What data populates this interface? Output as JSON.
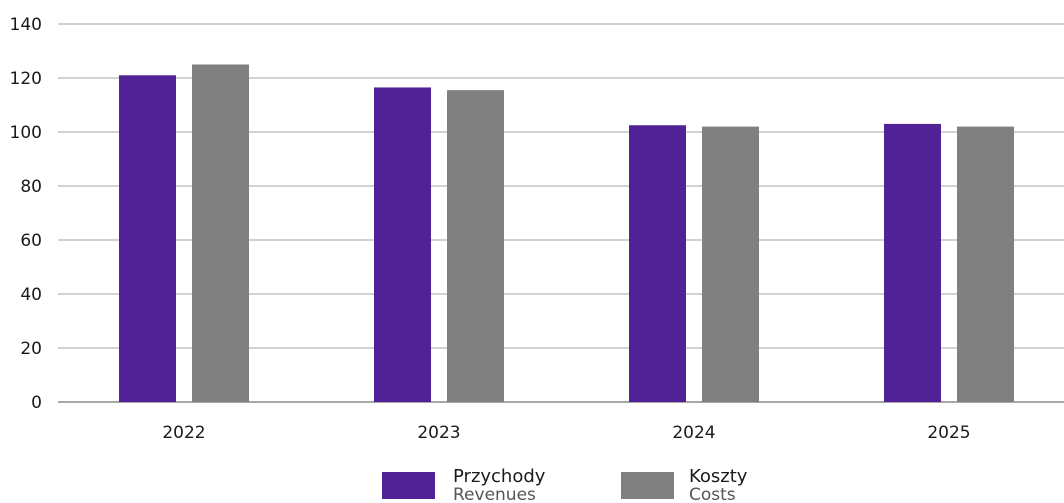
{
  "chart_data": {
    "type": "bar",
    "categories": [
      "2022",
      "2023",
      "2024",
      "2025"
    ],
    "series": [
      {
        "name": "Przychody",
        "name_en": "Revenues",
        "color": "#512295",
        "values": [
          121,
          116.5,
          102.5,
          103
        ]
      },
      {
        "name": "Koszty",
        "name_en": "Costs",
        "color": "#808080",
        "values": [
          125,
          115.5,
          102,
          102
        ]
      }
    ],
    "yticks": [
      0,
      20,
      40,
      60,
      80,
      100,
      120,
      140
    ],
    "ylim": [
      0,
      140
    ],
    "grid": true,
    "legend_position": "bottom-center",
    "title": "",
    "xlabel": "",
    "ylabel": ""
  }
}
